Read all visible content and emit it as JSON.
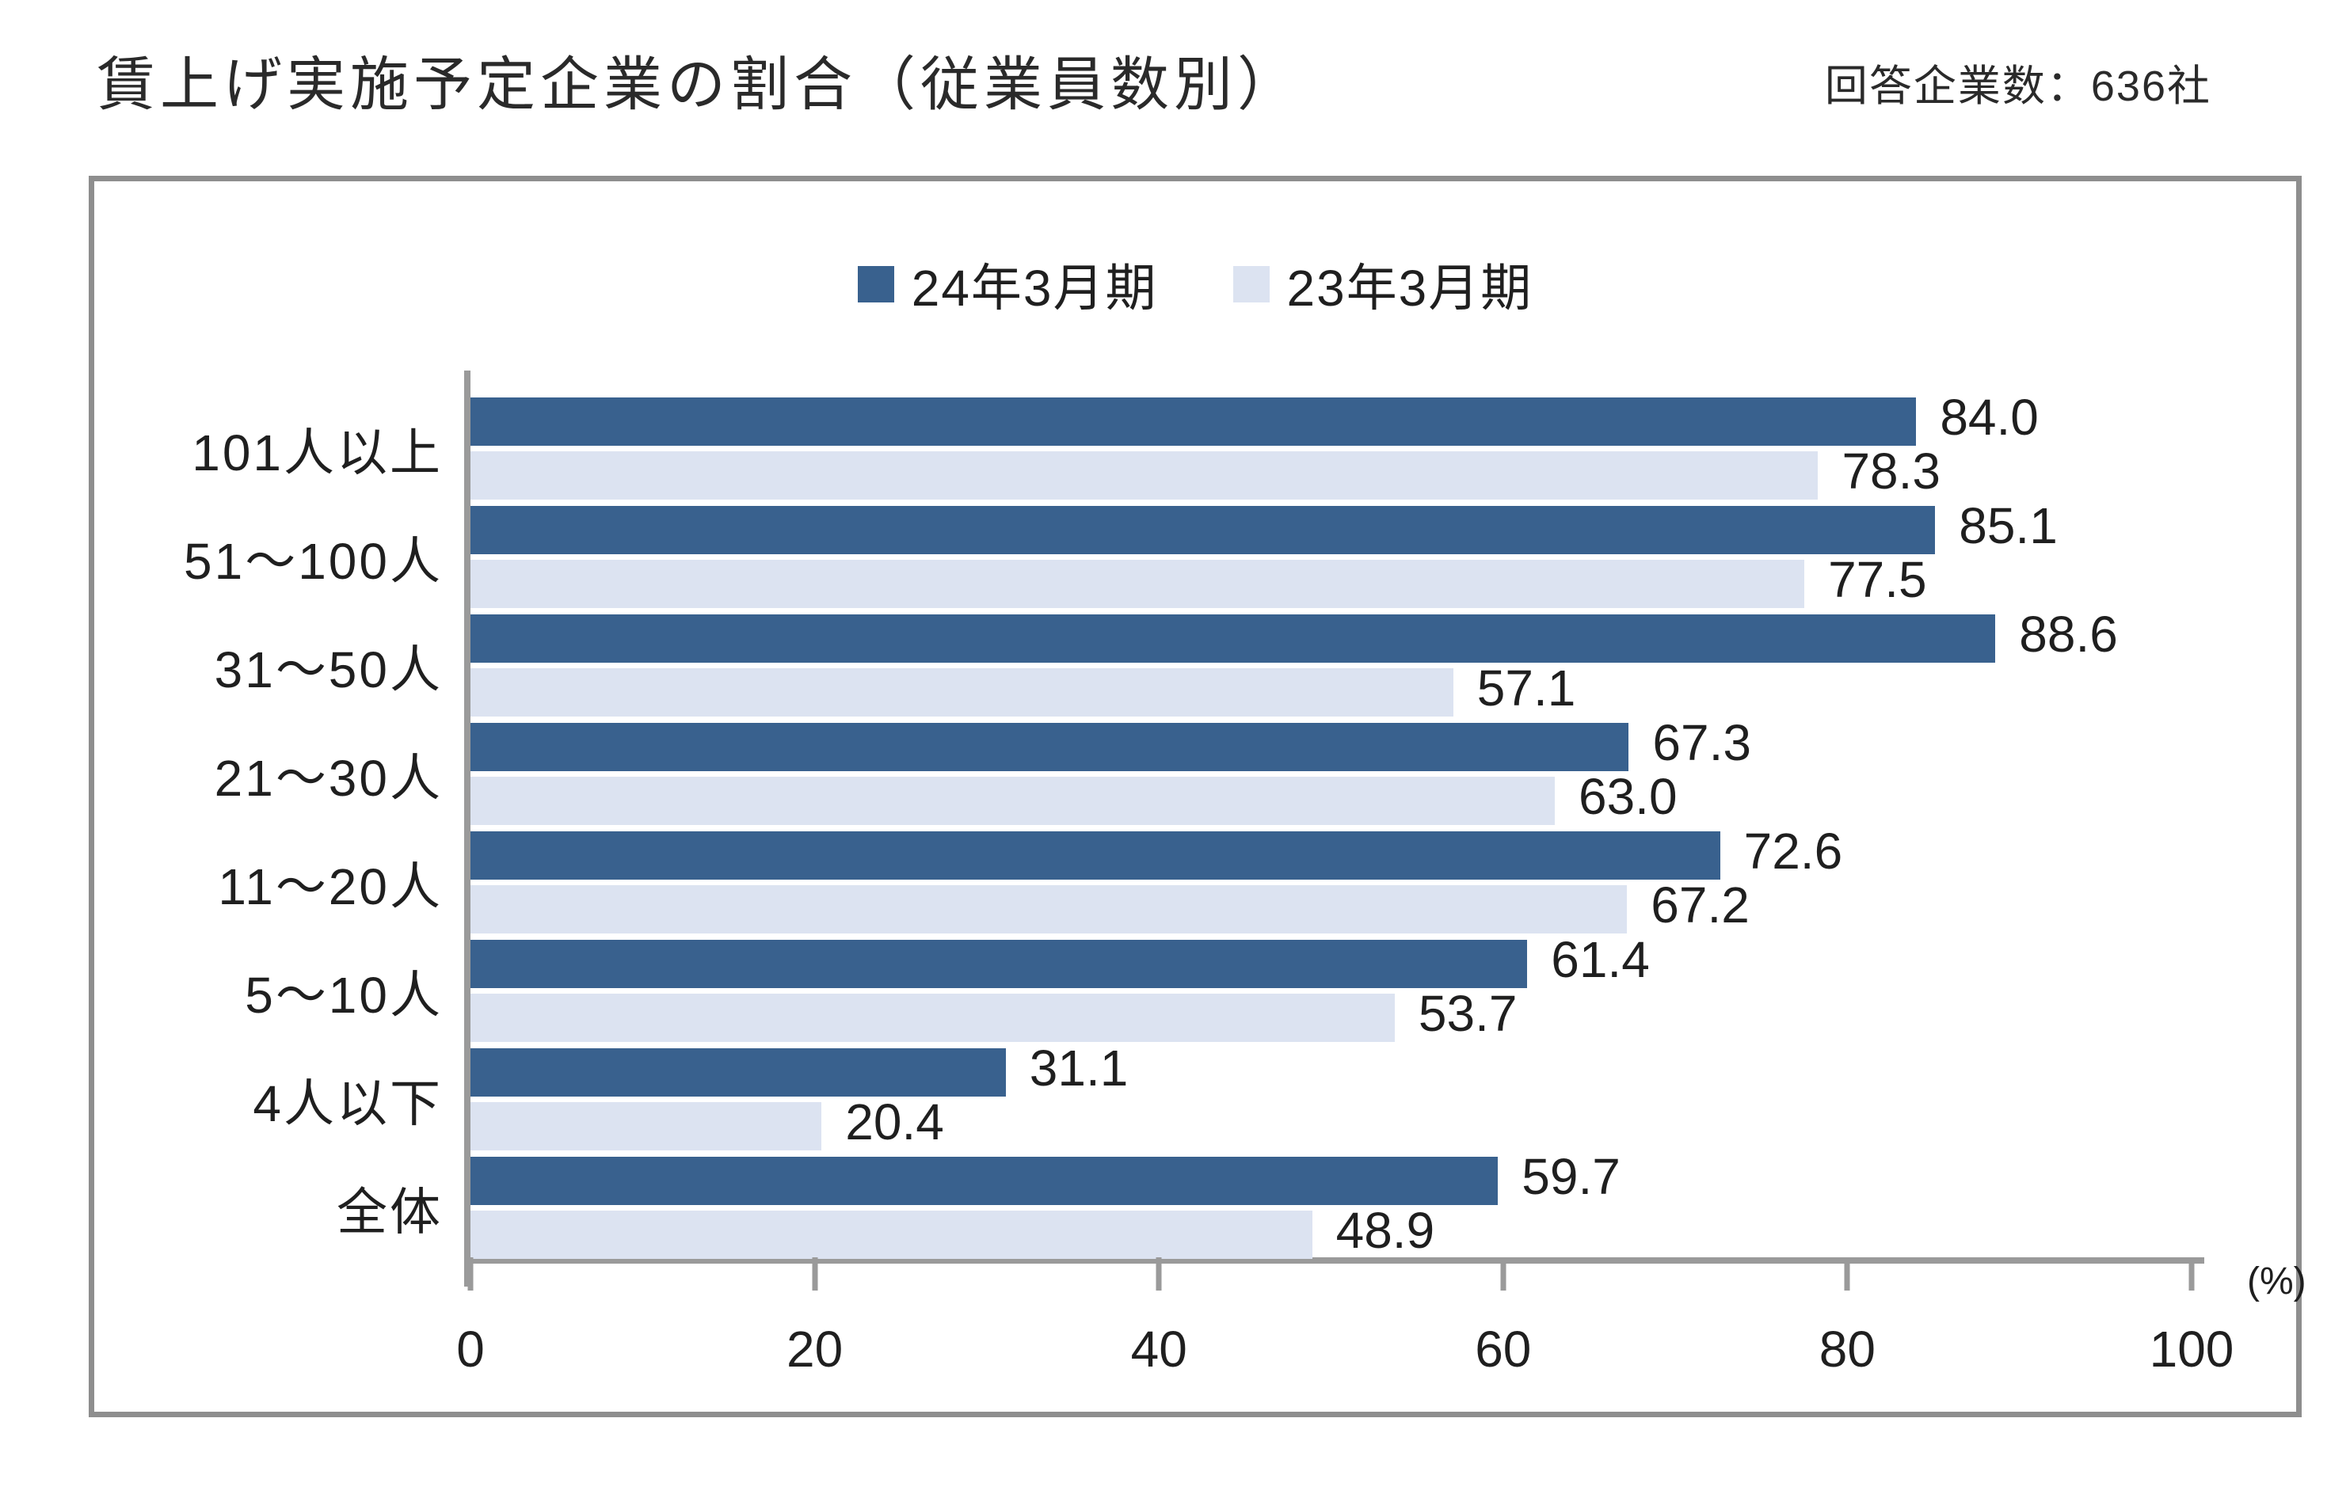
{
  "header": {
    "title": "賃上げ実施予定企業の割合（従業員数別）",
    "respondent_count": "回答企業数：636社"
  },
  "chart_data": {
    "type": "bar",
    "orientation": "horizontal",
    "title": "賃上げ実施予定企業の割合（従業員数別）",
    "categories": [
      "101人以上",
      "51～100人",
      "31～50人",
      "21～30人",
      "11～20人",
      "5～10人",
      "4人以下",
      "全体"
    ],
    "series": [
      {
        "name": "24年3月期",
        "color": "#39618E",
        "values": [
          84.0,
          85.1,
          88.6,
          67.3,
          72.6,
          61.4,
          31.1,
          59.7
        ],
        "labels": [
          "84.0",
          "85.1",
          "88.6",
          "67.3",
          "72.6",
          "61.4",
          "31.1",
          "59.7"
        ]
      },
      {
        "name": "23年3月期",
        "color": "#DCE3F1",
        "values": [
          78.3,
          77.5,
          57.1,
          63.0,
          67.2,
          53.7,
          20.4,
          48.9
        ],
        "labels": [
          "78.3",
          "77.5",
          "57.1",
          "63.0",
          "67.2",
          "53.7",
          "20.4",
          "48.9"
        ]
      }
    ],
    "xlabel": "(%)",
    "xlim": [
      0,
      100
    ],
    "xticks": [
      0,
      20,
      40,
      60,
      80,
      100
    ],
    "legend_position": "top-center",
    "grid": false,
    "value_labels": true,
    "axis_color": "#9a9a9a",
    "frame_color": "#8e8e8e",
    "text_color": "#1f1f1f"
  }
}
